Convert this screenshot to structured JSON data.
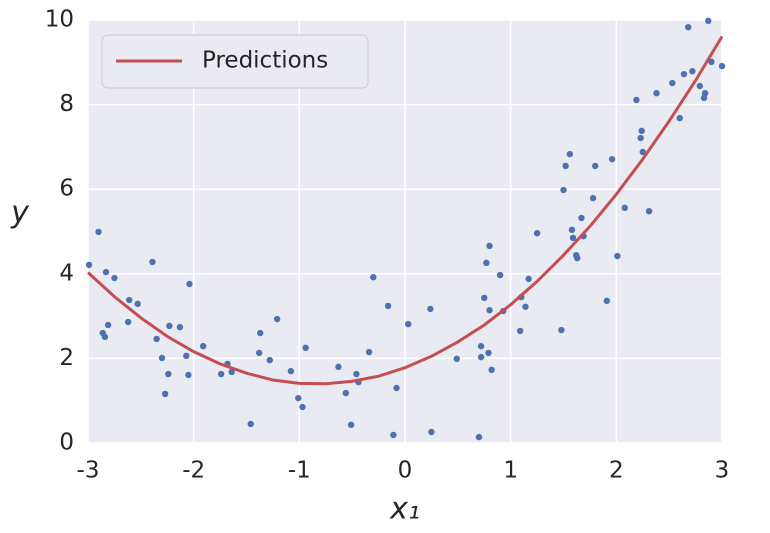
{
  "chart_data": {
    "type": "scatter",
    "xlabel": "x₁",
    "ylabel": "y",
    "xlim": [
      -3,
      3
    ],
    "xticks": [
      -3,
      -2,
      -1,
      0,
      1,
      2,
      3
    ],
    "ylim": [
      0,
      10
    ],
    "yticks": [
      0,
      2,
      4,
      6,
      8,
      10
    ],
    "grid": true,
    "legend": "upper left",
    "points": {
      "color": "#4c72b0",
      "x": [
        -2.99,
        -2.9,
        -2.83,
        -2.84,
        -2.86,
        -2.81,
        -2.75,
        -2.61,
        -2.53,
        -2.62,
        -2.39,
        -2.35,
        -2.3,
        -2.27,
        -2.23,
        -2.24,
        -2.13,
        -2.07,
        -2.05,
        -2.04,
        -1.91,
        -1.74,
        -1.68,
        -1.64,
        -1.46,
        -1.38,
        -1.37,
        -1.28,
        -1.21,
        -1.08,
        -1.01,
        -0.97,
        -0.94,
        -0.63,
        -0.56,
        -0.51,
        -0.46,
        -0.44,
        -0.34,
        -0.3,
        -0.16,
        -0.11,
        -0.08,
        0.03,
        0.24,
        0.25,
        0.49,
        0.7,
        0.72,
        0.72,
        0.75,
        0.77,
        0.79,
        0.8,
        0.8,
        0.82,
        0.9,
        0.93,
        1.09,
        1.1,
        1.14,
        1.17,
        1.25,
        1.48,
        1.5,
        1.52,
        1.56,
        1.58,
        1.59,
        1.62,
        1.63,
        1.67,
        1.69,
        1.78,
        1.8,
        1.91,
        1.96,
        2.01,
        2.08,
        2.19,
        2.23,
        2.24,
        2.25,
        2.31,
        2.38,
        2.53,
        2.6,
        2.64,
        2.68,
        2.72,
        2.79,
        2.83,
        2.84,
        2.87,
        2.9,
        3.0
      ],
      "values": [
        4.21,
        4.99,
        4.04,
        2.51,
        2.6,
        2.79,
        3.9,
        3.38,
        3.29,
        2.86,
        4.28,
        2.46,
        2.01,
        1.16,
        2.77,
        1.63,
        2.74,
        2.06,
        1.61,
        3.76,
        2.29,
        1.63,
        1.87,
        1.68,
        0.45,
        2.13,
        2.6,
        1.96,
        2.93,
        1.7,
        1.06,
        0.85,
        2.25,
        1.8,
        1.18,
        0.43,
        1.63,
        1.44,
        2.15,
        3.92,
        3.24,
        0.19,
        1.3,
        2.81,
        3.17,
        0.26,
        1.99,
        0.14,
        2.29,
        2.03,
        3.43,
        4.26,
        2.13,
        4.66,
        3.14,
        1.73,
        3.97,
        3.12,
        2.65,
        3.45,
        3.22,
        3.88,
        4.96,
        2.67,
        5.98,
        6.55,
        6.83,
        5.04,
        4.85,
        4.44,
        4.37,
        5.32,
        4.89,
        5.79,
        6.55,
        3.36,
        6.71,
        4.42,
        5.56,
        8.11,
        7.21,
        7.38,
        6.88,
        5.48,
        8.27,
        8.51,
        7.68,
        8.72,
        9.83,
        8.79,
        8.44,
        8.16,
        8.27,
        9.98,
        9.01,
        8.91
      ]
    },
    "series": [
      {
        "name": "Predictions",
        "type": "line",
        "color": "#c44e52",
        "x": [
          -3,
          -2.75,
          -2.5,
          -2.25,
          -2,
          -1.75,
          -1.5,
          -1.25,
          -1,
          -0.75,
          -0.5,
          -0.25,
          0,
          0.25,
          0.5,
          0.75,
          1,
          1.25,
          1.5,
          1.75,
          2,
          2.25,
          2.5,
          2.75,
          3
        ],
        "values": [
          4.03,
          3.46,
          2.96,
          2.52,
          2.16,
          1.87,
          1.65,
          1.49,
          1.41,
          1.4,
          1.46,
          1.58,
          1.78,
          2.05,
          2.39,
          2.79,
          3.27,
          3.82,
          4.44,
          5.12,
          5.88,
          6.71,
          7.61,
          8.57,
          9.61
        ]
      }
    ]
  }
}
